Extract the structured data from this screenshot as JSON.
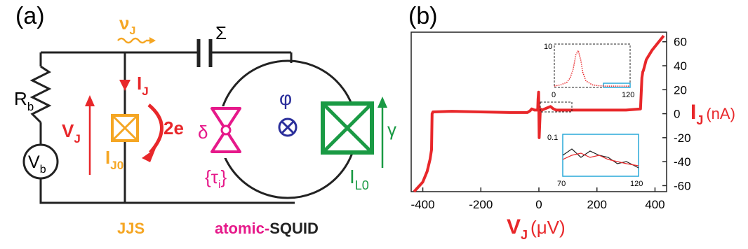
{
  "panel_a": {
    "label": "(a)",
    "nu_J": "ν",
    "nu_J_sub": "J",
    "sigma": "Σ",
    "Rb": "R",
    "Rb_sub": "b",
    "IJ": "I",
    "IJ_sub": "J",
    "VJ": "V",
    "VJ_sub": "J",
    "Vb": "V",
    "Vb_sub": "b",
    "IJ0": "I",
    "IJ0_sub": "J0",
    "two_e": "2e",
    "delta": "δ",
    "tau": "{τ",
    "tau_sub": "i",
    "tau_close": "}",
    "phi": "φ",
    "otimes": "⊗",
    "gamma": "γ",
    "IL0": "I",
    "IL0_sub": "L0",
    "jjs_label": "JJS",
    "atomic_label": "atomic-",
    "squid_label": "SQUID",
    "colors": {
      "orange": "#f5a623",
      "magenta": "#e6198a",
      "green": "#1a9a44",
      "red": "#e8272a",
      "blue": "#2b2f9b"
    }
  },
  "panel_b": {
    "label": "(b)",
    "xlabel": "V",
    "xlabel_sub": "J",
    "xlabel_unit": "(μV)",
    "ylabel": "I",
    "ylabel_sub": "J",
    "ylabel_unit": "(nA)",
    "inset1_ticks": {
      "y_top": "10",
      "x_left": "0",
      "x_right": "120"
    },
    "inset2_ticks": {
      "y_top": "0.1",
      "x_left": "70",
      "x_right": "120"
    }
  },
  "chart_data": {
    "type": "line",
    "title": "",
    "xlabel": "VJ (μV)",
    "ylabel": "IJ (nA)",
    "xlim": [
      -440,
      440
    ],
    "ylim": [
      -65,
      68
    ],
    "xticks": [
      "-400",
      "-200",
      "0",
      "200",
      "400"
    ],
    "yticks": [
      "60",
      "40",
      "20",
      "0",
      "-20",
      "-40",
      "-60"
    ],
    "series": [
      {
        "color": "#e8272a",
        "x": [
          -430,
          -400,
          -385,
          -375,
          -370,
          -368,
          -365,
          -300,
          -200,
          -100,
          -40,
          -30,
          -25,
          -15,
          -8,
          -4,
          -3,
          -1,
          0,
          1,
          3,
          5,
          10,
          20,
          30,
          40,
          50,
          60,
          80,
          100,
          200,
          300,
          350,
          355,
          358,
          360,
          370,
          390,
          410,
          430
        ],
        "y": [
          -65,
          -57,
          -48,
          -38,
          -30,
          0,
          1.5,
          2,
          1.5,
          1,
          1,
          2.5,
          4,
          3,
          3,
          3,
          12,
          18,
          0,
          -20,
          -8,
          4,
          3,
          4,
          5,
          6,
          4,
          3,
          3,
          3,
          3,
          3,
          4,
          30,
          35,
          36,
          45,
          53,
          59,
          65
        ]
      }
    ],
    "inset_peak": {
      "xlim": [
        0,
        120
      ],
      "ylim": [
        0,
        10
      ],
      "x": [
        0,
        10,
        20,
        25,
        30,
        34,
        38,
        42,
        45,
        50,
        60,
        70,
        80,
        90,
        100,
        110,
        120
      ],
      "y": [
        0.3,
        0.6,
        1.2,
        2.2,
        4.3,
        7.5,
        8.5,
        6.2,
        3.5,
        1.5,
        0.6,
        0.4,
        0.3,
        0.3,
        0.3,
        0.3,
        0.3
      ]
    },
    "inset_zoom": {
      "xlim": [
        70,
        120
      ],
      "ylim": [
        0,
        0.1
      ],
      "series": [
        {
          "color": "#222222",
          "x": [
            70,
            76,
            82,
            88,
            94,
            100,
            106,
            112,
            120
          ],
          "y": [
            0.05,
            0.065,
            0.045,
            0.06,
            0.05,
            0.045,
            0.03,
            0.035,
            0.02
          ]
        },
        {
          "color": "#e8272a",
          "x": [
            70,
            76,
            82,
            88,
            94,
            100,
            106,
            112,
            120
          ],
          "y": [
            0.04,
            0.05,
            0.055,
            0.045,
            0.05,
            0.04,
            0.035,
            0.03,
            0.025
          ]
        }
      ]
    }
  }
}
